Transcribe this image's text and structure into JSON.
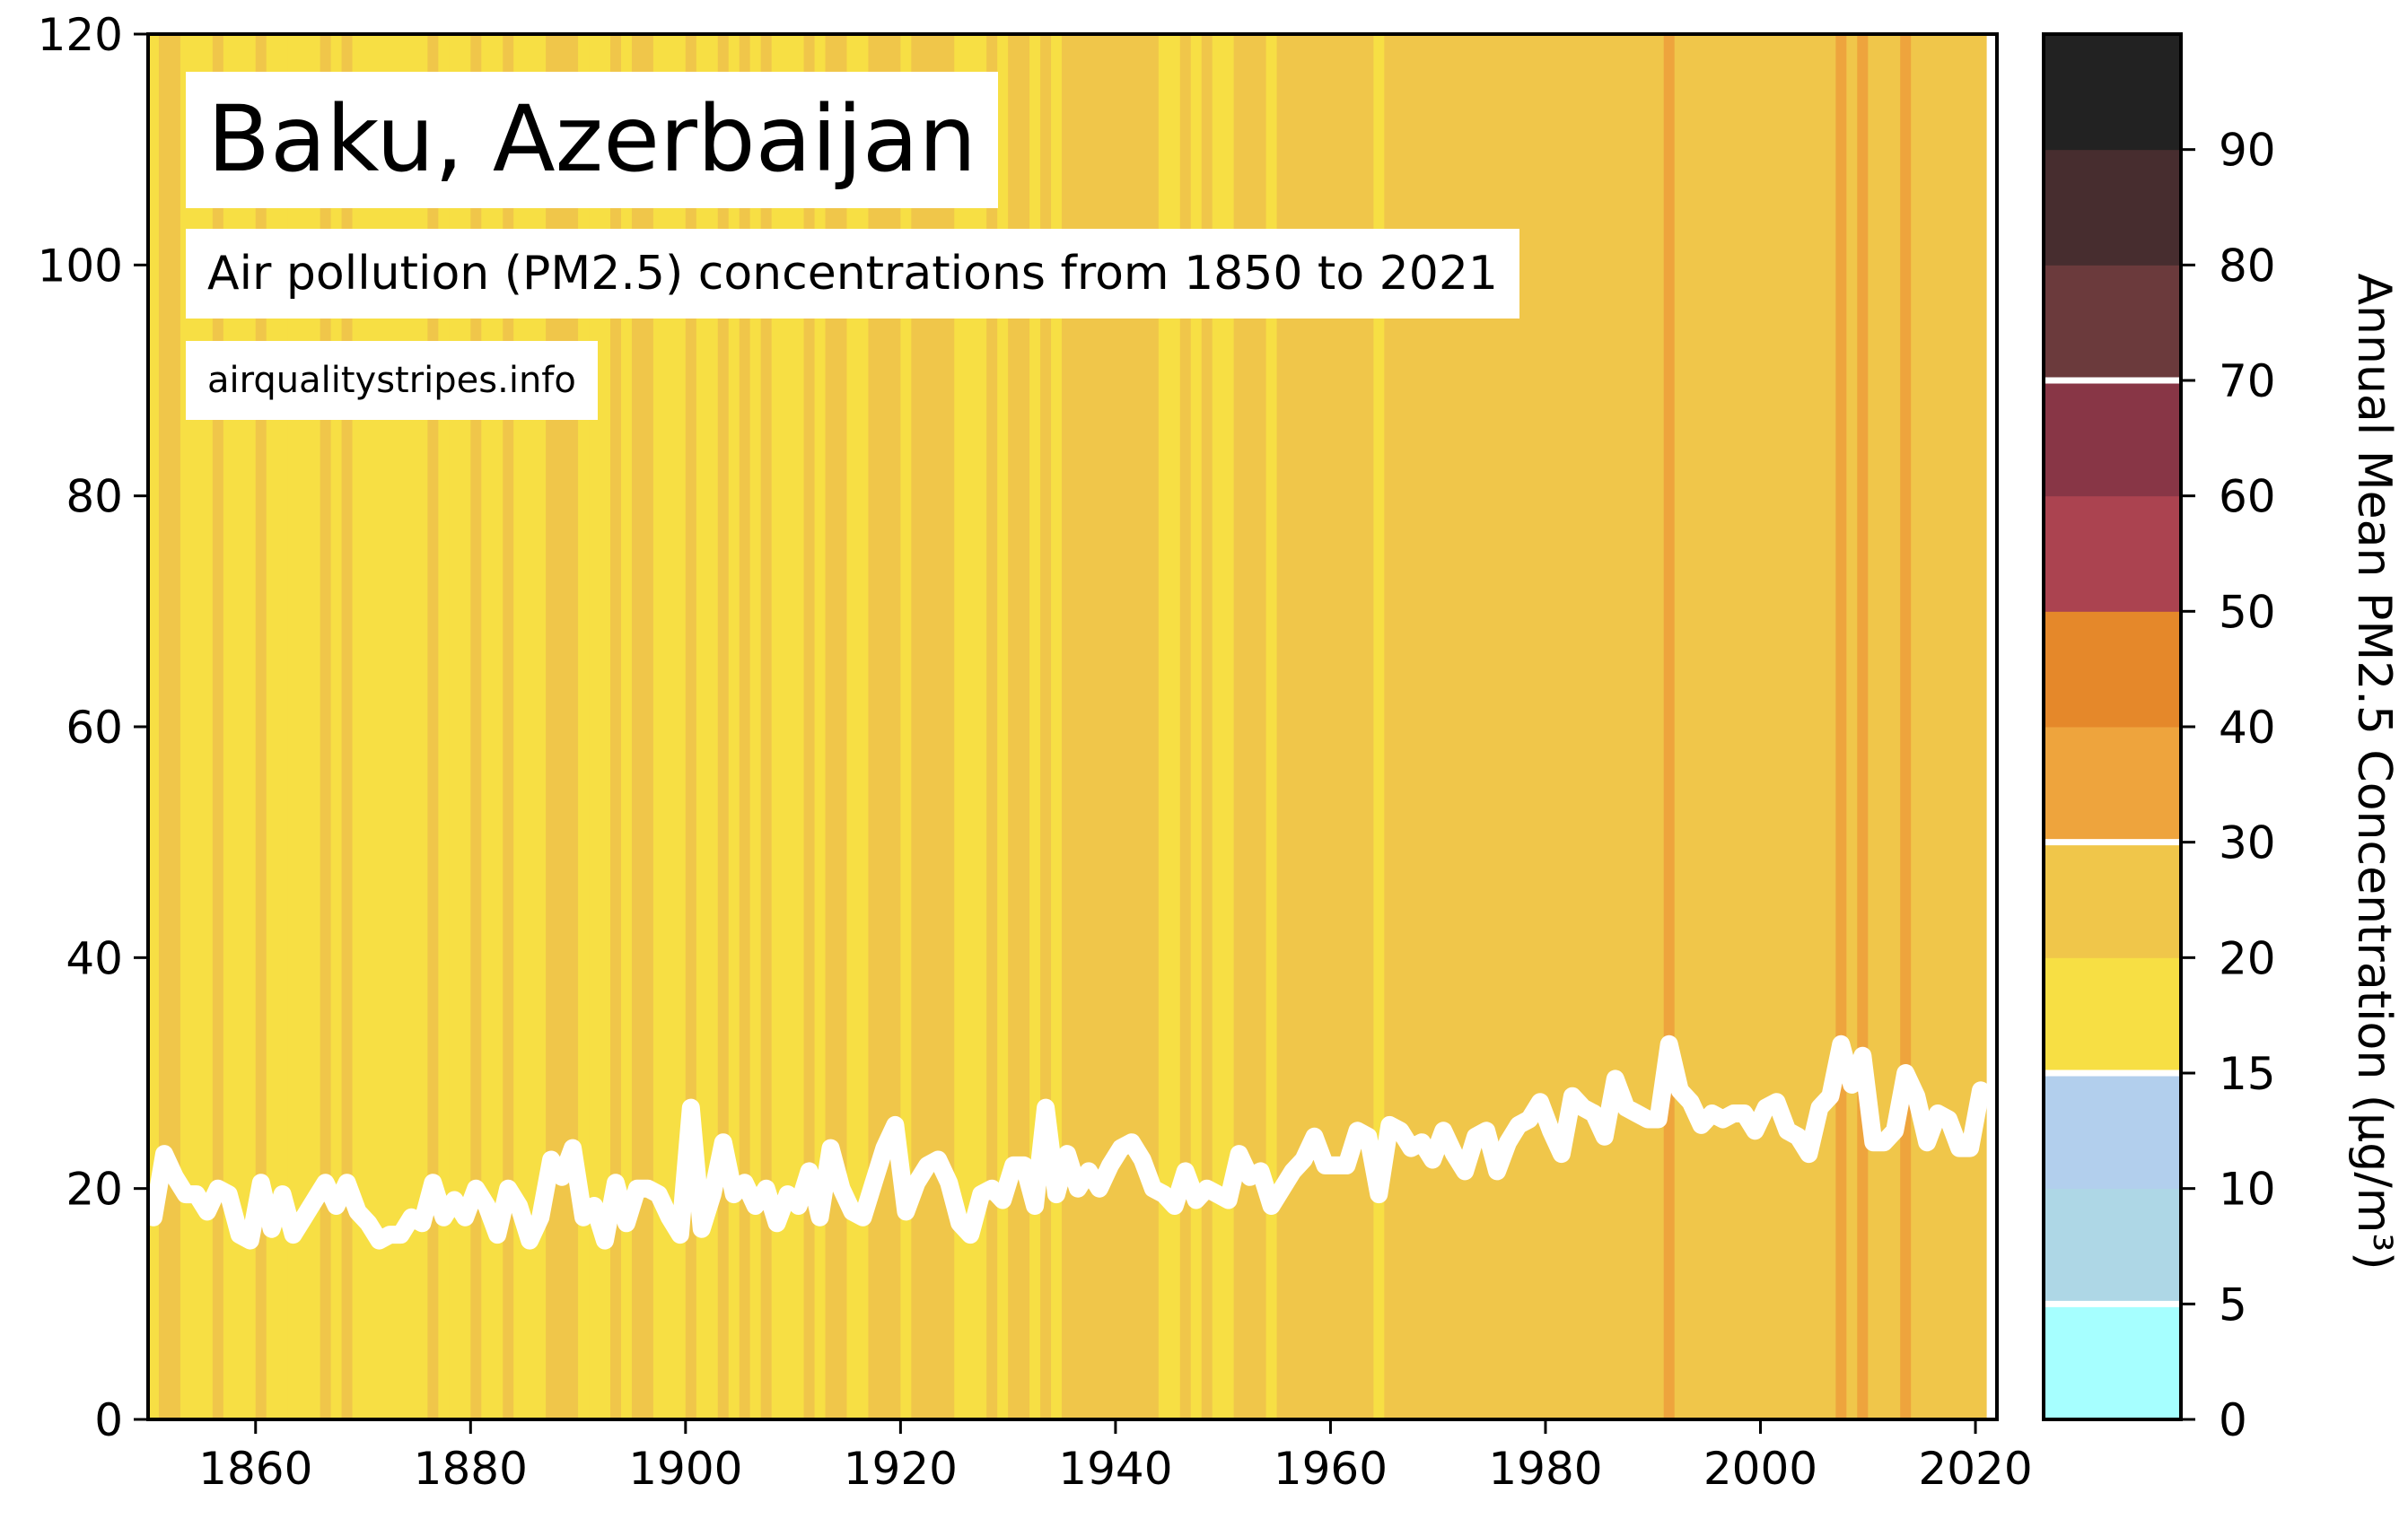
{
  "title": "Baku, Azerbaijan",
  "subtitle": "Air pollution (PM2.5) concentrations from 1850 to 2021",
  "source": "airqualitystripes.info",
  "chart_data": {
    "type": "line",
    "x_start": 1850,
    "x_end": 2021,
    "xlim": [
      1850,
      2022
    ],
    "ylim": [
      0,
      120
    ],
    "x_ticks": [
      "1860",
      "1880",
      "1900",
      "1920",
      "1940",
      "1960",
      "1980",
      "2000",
      "2020"
    ],
    "y_ticks": [
      "0",
      "20",
      "40",
      "60",
      "80",
      "100",
      "120"
    ],
    "values": [
      17.5,
      23.0,
      21.0,
      19.5,
      19.5,
      18.0,
      20.0,
      19.5,
      16.0,
      15.5,
      20.5,
      16.5,
      19.5,
      16.0,
      17.5,
      19.0,
      20.5,
      18.5,
      20.5,
      18.0,
      17.0,
      15.5,
      16.0,
      16.0,
      17.5,
      17.0,
      20.5,
      17.5,
      19.0,
      17.5,
      20.0,
      18.5,
      16.0,
      20.0,
      18.5,
      15.5,
      17.5,
      22.5,
      21.0,
      23.5,
      17.5,
      18.5,
      15.5,
      20.5,
      17.0,
      20.0,
      20.0,
      19.5,
      17.5,
      16.0,
      27.0,
      16.5,
      19.5,
      24.0,
      19.5,
      20.5,
      18.5,
      20.0,
      17.0,
      19.5,
      18.5,
      21.5,
      17.5,
      23.5,
      20.0,
      18.0,
      17.5,
      20.5,
      23.5,
      25.5,
      18.0,
      20.5,
      22.0,
      22.5,
      20.5,
      17.0,
      16.0,
      19.5,
      20.0,
      19.0,
      22.0,
      22.0,
      18.5,
      27.0,
      19.5,
      23.0,
      20.0,
      21.5,
      20.0,
      22.0,
      23.5,
      24.0,
      22.5,
      20.0,
      19.5,
      18.5,
      21.5,
      19.0,
      20.0,
      19.5,
      19.0,
      23.0,
      21.0,
      21.5,
      18.5,
      20.0,
      21.5,
      22.5,
      24.5,
      22.0,
      22.0,
      22.0,
      25.0,
      24.5,
      19.5,
      25.5,
      25.0,
      23.5,
      24.0,
      22.5,
      25.0,
      23.0,
      21.5,
      24.5,
      25.0,
      21.5,
      24.0,
      25.5,
      26.0,
      27.5,
      25.0,
      23.0,
      28.0,
      27.0,
      26.5,
      24.5,
      29.5,
      27.0,
      26.5,
      26.0,
      26.0,
      32.5,
      28.5,
      27.5,
      25.5,
      26.5,
      26.0,
      26.5,
      26.5,
      25.0,
      27.0,
      27.5,
      25.0,
      24.5,
      23.0,
      27.0,
      28.0,
      32.5,
      29.0,
      31.5,
      24.0,
      24.0,
      25.0,
      30.0,
      28.0,
      24.0,
      26.5,
      26.0,
      23.5,
      23.5,
      28.5
    ],
    "colorbar": {
      "label": "Annual Mean PM2.5 Concentration (μg/m³)",
      "ticks": [
        "0",
        "5",
        "10",
        "15",
        "20",
        "30",
        "40",
        "50",
        "60",
        "70",
        "80",
        "90"
      ],
      "bins": [
        {
          "from": 0,
          "to": 5,
          "color": "#a6ffff"
        },
        {
          "from": 5,
          "to": 10,
          "color": "#aed7e6"
        },
        {
          "from": 10,
          "to": 15,
          "color": "#b2cfed"
        },
        {
          "from": 15,
          "to": 20,
          "color": "#f7df44"
        },
        {
          "from": 20,
          "to": 30,
          "color": "#f0c64a"
        },
        {
          "from": 30,
          "to": 40,
          "color": "#eea43d"
        },
        {
          "from": 40,
          "to": 50,
          "color": "#e5882a"
        },
        {
          "from": 50,
          "to": 60,
          "color": "#ab4350"
        },
        {
          "from": 60,
          "to": 70,
          "color": "#883646"
        },
        {
          "from": 70,
          "to": 80,
          "color": "#6b3a3c"
        },
        {
          "from": 80,
          "to": 90,
          "color": "#472d2f"
        },
        {
          "from": 90,
          "to": 100,
          "color": "#222222"
        }
      ],
      "separators_at": [
        5,
        15,
        30,
        70
      ]
    },
    "line_color": "#ffffff",
    "grid": false
  }
}
